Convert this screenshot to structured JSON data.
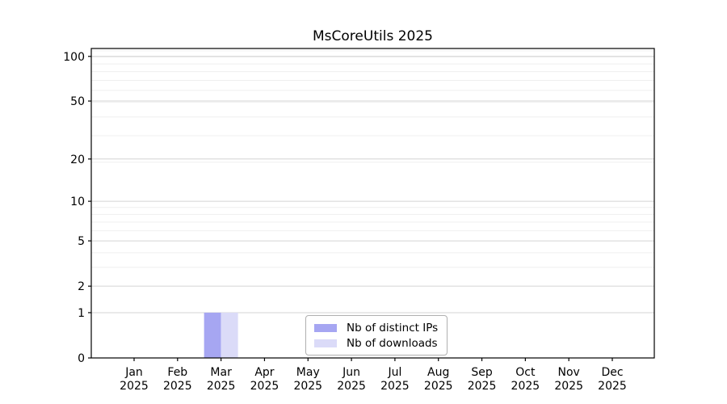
{
  "chart_data": {
    "type": "bar",
    "title": "MsCoreUtils 2025",
    "xlabel": "",
    "ylabel": "",
    "categories": [
      "Jan",
      "Feb",
      "Mar",
      "Apr",
      "May",
      "Jun",
      "Jul",
      "Aug",
      "Sep",
      "Oct",
      "Nov",
      "Dec"
    ],
    "year_label": "2025",
    "series": [
      {
        "name": "Nb of distinct IPs",
        "color": "#a6a6f2",
        "values": [
          0,
          0,
          1,
          0,
          0,
          0,
          0,
          0,
          0,
          0,
          0,
          0
        ]
      },
      {
        "name": "Nb of downloads",
        "color": "#dbdbf8",
        "values": [
          0,
          0,
          1,
          0,
          0,
          0,
          0,
          0,
          0,
          0,
          0,
          0
        ]
      }
    ],
    "yscale": "log1p",
    "yticks": [
      0,
      1,
      2,
      5,
      10,
      20,
      50,
      100
    ],
    "yticks_minor": [
      3,
      4,
      6,
      7,
      8,
      9,
      19,
      29,
      39,
      49,
      59,
      69,
      79,
      89,
      99,
      109
    ],
    "ylim": [
      0,
      113
    ],
    "grid": true,
    "legend_position": "lower center"
  },
  "colors": {
    "grid_major": "#d4d4d4",
    "grid_minor": "#efefef",
    "axis": "#000000",
    "tick_text": "#000000",
    "legend_border": "#b0b0b0",
    "background": "#ffffff"
  }
}
